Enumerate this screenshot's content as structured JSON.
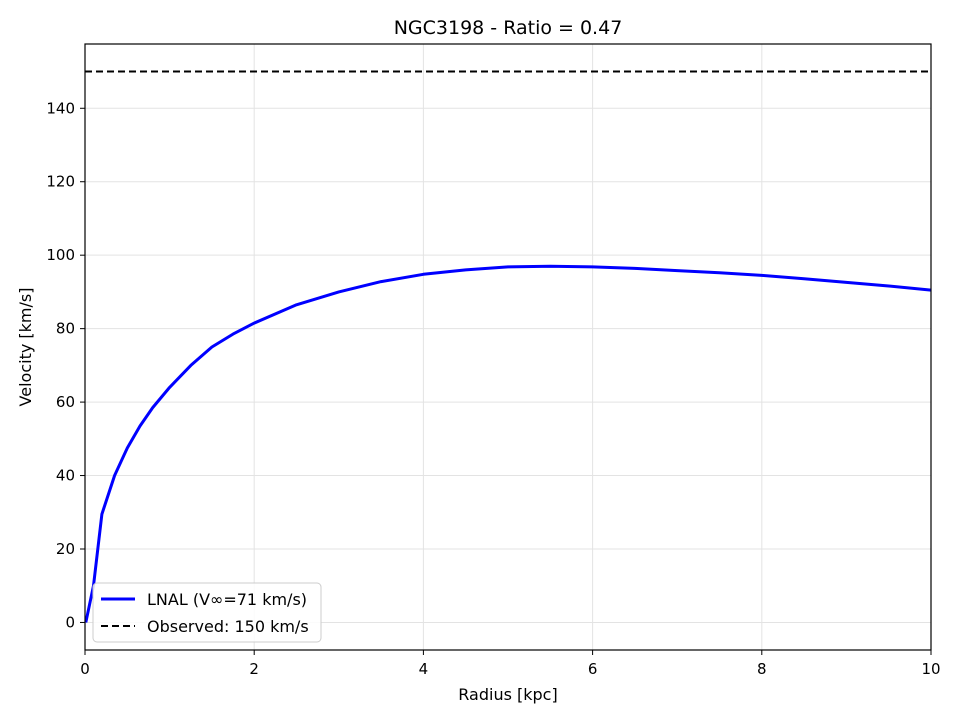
{
  "chart_data": {
    "type": "line",
    "title": "NGC3198 - Ratio = 0.47",
    "xlabel": "Radius [kpc]",
    "ylabel": "Velocity [km/s]",
    "xlim": [
      0,
      10
    ],
    "ylim": [
      -7.5,
      157.5
    ],
    "xticks": [
      0,
      2,
      4,
      6,
      8,
      10
    ],
    "yticks": [
      0,
      20,
      40,
      60,
      80,
      100,
      120,
      140
    ],
    "grid": true,
    "legend_position": "lower-left",
    "series": [
      {
        "name": "LNAL (V∞=71 km/s)",
        "color": "#0000ff",
        "style": "solid",
        "x": [
          0.01,
          0.1,
          0.2,
          0.35,
          0.5,
          0.65,
          0.8,
          1.0,
          1.25,
          1.5,
          1.75,
          2.0,
          2.5,
          3.0,
          3.5,
          4.0,
          4.5,
          5.0,
          5.5,
          6.0,
          6.5,
          7.0,
          7.5,
          8.0,
          8.5,
          9.0,
          9.5,
          10.0
        ],
        "y": [
          0,
          10,
          29.5,
          40,
          47.5,
          53.5,
          58.5,
          64,
          70,
          75,
          78.5,
          81.5,
          86.5,
          90,
          92.8,
          94.8,
          96,
          96.8,
          97,
          96.8,
          96.4,
          95.8,
          95.2,
          94.5,
          93.6,
          92.6,
          91.6,
          90.5
        ]
      },
      {
        "name": "Observed: 150 km/s",
        "color": "#000000",
        "style": "dashed",
        "x": [
          0,
          10
        ],
        "y": [
          150,
          150
        ]
      }
    ]
  }
}
